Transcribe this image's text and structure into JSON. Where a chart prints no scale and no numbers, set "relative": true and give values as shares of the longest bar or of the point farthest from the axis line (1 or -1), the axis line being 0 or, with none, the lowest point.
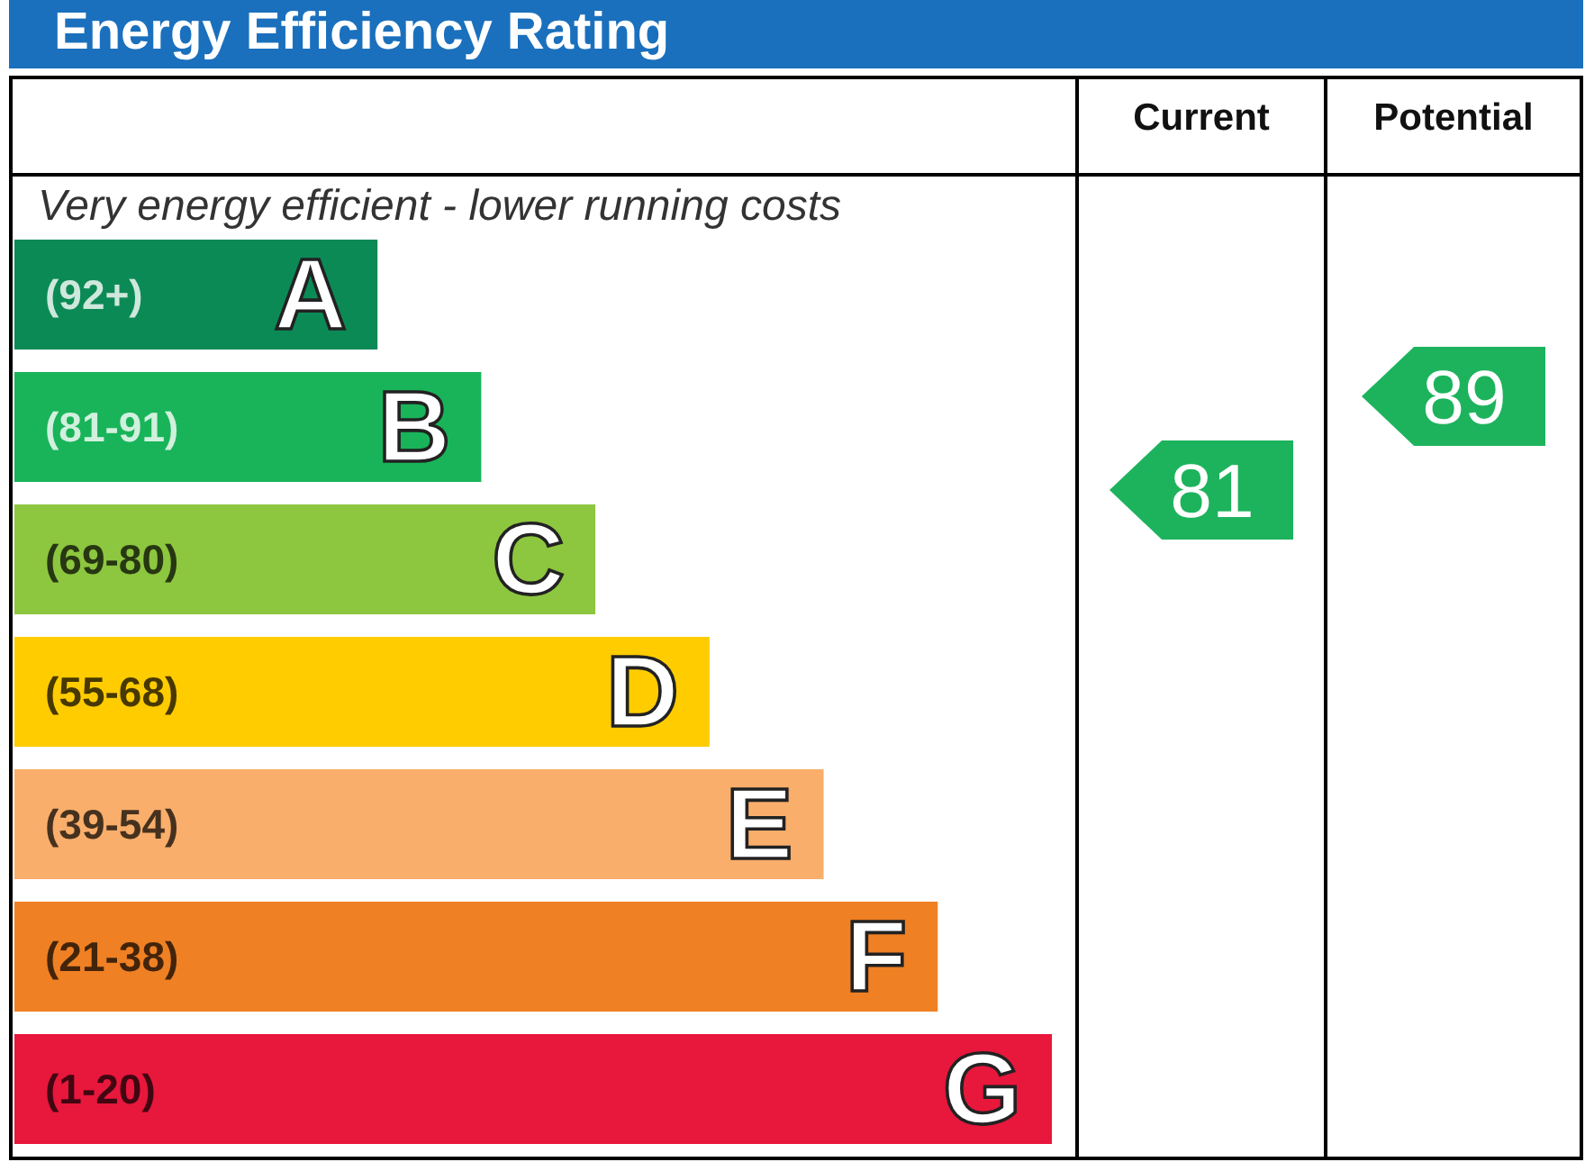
{
  "chart_data": [
    {
      "type": "bar",
      "orientation": "horizontal",
      "relative": true,
      "title": "Energy Efficiency Rating",
      "categories": [
        "A",
        "B",
        "C",
        "D",
        "E",
        "F",
        "G"
      ],
      "values": [
        0.35,
        0.45,
        0.56,
        0.67,
        0.78,
        0.89,
        1
      ],
      "colors": [
        "#0c8a56",
        "#19b459",
        "#8dc63f",
        "#ffcc00",
        "#f9ae6b",
        "#ef8023",
        "#e8173c"
      ],
      "annotations": [
        "Very energy efficient - lower running costs",
        "(92+)",
        "(81-91)",
        "(69-80)",
        "(55-68)",
        "(39-54)",
        "(21-38)",
        "(1-20)"
      ]
    },
    {
      "type": "other",
      "title": "Current",
      "color": "#1db35d",
      "annotations": [
        "81"
      ]
    },
    {
      "type": "other",
      "title": "Potential",
      "color": "#1db35d",
      "annotations": [
        "89"
      ]
    }
  ]
}
